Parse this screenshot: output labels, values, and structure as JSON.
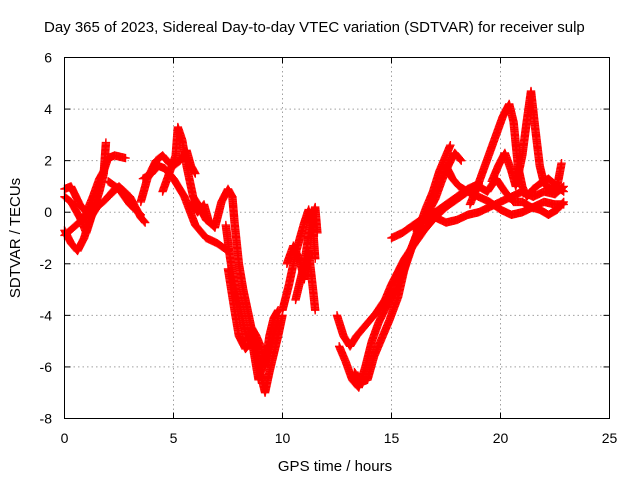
{
  "chart_data": {
    "type": "scatter",
    "title": "Day 365 of 2023, Sidereal Day-to-day VTEC variation (SDTVAR) for receiver sulp",
    "xlabel": "GPS time / hours",
    "ylabel": "SDTVAR / TECUs",
    "xlim": [
      0,
      25
    ],
    "ylim": [
      -8,
      6
    ],
    "xticks": [
      "0",
      "5",
      "10",
      "15",
      "20",
      "25"
    ],
    "yticks": [
      "-8",
      "-6",
      "-4",
      "-2",
      "0",
      "2",
      "4",
      "6"
    ],
    "grid": true,
    "marker": "plus",
    "color": "#ff0000",
    "series": [
      {
        "points": [
          [
            0,
            0.9
          ],
          [
            0.3,
            1.0
          ],
          [
            0.7,
            0.3
          ],
          [
            1.0,
            0.0
          ],
          [
            1.3,
            0.6
          ],
          [
            1.6,
            1.3
          ],
          [
            1.8,
            1.6
          ],
          [
            2.0,
            2.1
          ],
          [
            2.3,
            2.2
          ],
          [
            2.8,
            2.1
          ]
        ]
      },
      {
        "points": [
          [
            0,
            0.6
          ],
          [
            0.3,
            0.4
          ],
          [
            0.7,
            -0.2
          ],
          [
            1.0,
            -0.8
          ],
          [
            1.3,
            0.0
          ],
          [
            1.6,
            0.8
          ],
          [
            1.8,
            1.5
          ],
          [
            1.9,
            2.7
          ]
        ]
      },
      {
        "points": [
          [
            0,
            -0.7
          ],
          [
            0.3,
            -1.2
          ],
          [
            0.6,
            -1.5
          ],
          [
            0.9,
            -1.0
          ],
          [
            1.2,
            -0.2
          ],
          [
            1.5,
            0.2
          ],
          [
            1.9,
            0.5
          ],
          [
            2.3,
            0.9
          ]
        ]
      },
      {
        "points": [
          [
            0,
            -0.9
          ],
          [
            0.4,
            -0.6
          ],
          [
            0.8,
            -0.3
          ],
          [
            1.2,
            0.2
          ],
          [
            1.6,
            0.4
          ]
        ]
      },
      {
        "points": [
          [
            2.0,
            0.6
          ],
          [
            2.5,
            1.0
          ],
          [
            3.0,
            0.6
          ],
          [
            3.5,
            -0.2
          ],
          [
            3.7,
            -0.4
          ]
        ]
      },
      {
        "points": [
          [
            2.0,
            1.2
          ],
          [
            2.5,
            0.9
          ],
          [
            3.0,
            0.3
          ],
          [
            3.5,
            -0.1
          ]
        ]
      },
      {
        "points": [
          [
            3.5,
            0.4
          ],
          [
            3.8,
            1.3
          ],
          [
            4.2,
            2.0
          ],
          [
            4.5,
            2.2
          ],
          [
            4.8,
            1.9
          ],
          [
            5.0,
            1.8
          ],
          [
            5.3,
            2.0
          ],
          [
            5.6,
            2.4
          ],
          [
            5.8,
            1.8
          ],
          [
            6.0,
            1.5
          ]
        ]
      },
      {
        "points": [
          [
            3.6,
            1.3
          ],
          [
            4.0,
            1.5
          ],
          [
            4.3,
            1.8
          ],
          [
            4.6,
            1.7
          ],
          [
            5.0,
            1.3
          ],
          [
            5.5,
            0.6
          ],
          [
            6.0,
            -0.5
          ],
          [
            6.5,
            -1.0
          ],
          [
            7.0,
            -1.2
          ],
          [
            7.5,
            -1.5
          ]
        ]
      },
      {
        "points": [
          [
            4.5,
            0.8
          ],
          [
            4.8,
            1.5
          ],
          [
            5.1,
            2.2
          ],
          [
            5.2,
            3.3
          ],
          [
            5.4,
            2.8
          ],
          [
            5.6,
            1.8
          ],
          [
            5.9,
            0.6
          ],
          [
            6.2,
            0.2
          ],
          [
            6.5,
            -0.3
          ],
          [
            6.8,
            -0.5
          ]
        ]
      },
      {
        "points": [
          [
            5.8,
            0.4
          ],
          [
            6.1,
            0.0
          ],
          [
            6.4,
            0.3
          ],
          [
            6.6,
            -0.3
          ],
          [
            6.9,
            -0.6
          ],
          [
            7.2,
            0.4
          ],
          [
            7.5,
            0.9
          ],
          [
            7.7,
            0.6
          ],
          [
            7.8,
            -0.4
          ],
          [
            8.0,
            -2.0
          ],
          [
            8.2,
            -3.0
          ],
          [
            8.4,
            -3.8
          ],
          [
            8.6,
            -4.6
          ],
          [
            8.8,
            -5.5
          ],
          [
            9.0,
            -6.3
          ],
          [
            9.2,
            -7.0
          ],
          [
            9.4,
            -6.2
          ],
          [
            9.6,
            -5.5
          ],
          [
            9.8,
            -4.8
          ],
          [
            10.0,
            -4.0
          ]
        ]
      },
      {
        "points": [
          [
            7.4,
            -0.5
          ],
          [
            7.6,
            -1.8
          ],
          [
            7.8,
            -2.8
          ],
          [
            8.0,
            -3.5
          ],
          [
            8.2,
            -4.3
          ],
          [
            8.4,
            -5.0
          ],
          [
            8.6,
            -4.5
          ],
          [
            8.8,
            -4.8
          ],
          [
            9.0,
            -5.2
          ],
          [
            9.2,
            -6.0
          ],
          [
            9.4,
            -4.8
          ],
          [
            9.6,
            -4.1
          ],
          [
            9.8,
            -3.8
          ]
        ]
      },
      {
        "points": [
          [
            7.5,
            -2.2
          ],
          [
            7.8,
            -3.8
          ],
          [
            8.0,
            -4.8
          ],
          [
            8.3,
            -5.3
          ],
          [
            8.6,
            -5.0
          ],
          [
            8.9,
            -6.5
          ],
          [
            9.2,
            -5.6
          ],
          [
            9.5,
            -5.0
          ],
          [
            9.8,
            -4.2
          ]
        ]
      },
      {
        "points": [
          [
            10.0,
            -3.8
          ],
          [
            10.3,
            -2.8
          ],
          [
            10.6,
            -1.6
          ],
          [
            10.8,
            -1.0
          ],
          [
            11.0,
            -0.4
          ],
          [
            11.2,
            0.1
          ],
          [
            11.4,
            -0.6
          ],
          [
            11.5,
            -1.8
          ]
        ]
      },
      {
        "points": [
          [
            10.2,
            -2.0
          ],
          [
            10.5,
            -1.3
          ],
          [
            10.8,
            -1.9
          ],
          [
            11.0,
            -2.6
          ],
          [
            11.2,
            -1.5
          ],
          [
            11.4,
            -3.0
          ],
          [
            11.5,
            -3.8
          ]
        ]
      },
      {
        "points": [
          [
            10.6,
            -3.4
          ],
          [
            11.0,
            -2.0
          ],
          [
            11.3,
            -0.3
          ],
          [
            11.5,
            0.2
          ],
          [
            11.6,
            -0.8
          ]
        ]
      },
      {
        "points": [
          [
            12.5,
            -4.0
          ],
          [
            12.8,
            -4.8
          ],
          [
            13.1,
            -5.2
          ],
          [
            13.4,
            -4.8
          ],
          [
            13.7,
            -4.5
          ],
          [
            14.0,
            -4.2
          ],
          [
            14.3,
            -3.9
          ],
          [
            14.7,
            -3.4
          ],
          [
            15.0,
            -2.8
          ],
          [
            15.3,
            -2.3
          ],
          [
            15.6,
            -1.8
          ],
          [
            16.0,
            -1.3
          ],
          [
            16.5,
            -0.7
          ],
          [
            17.0,
            -0.2
          ],
          [
            17.5,
            0.2
          ],
          [
            18.0,
            0.5
          ],
          [
            18.5,
            0.8
          ],
          [
            19.0,
            1.1
          ]
        ]
      },
      {
        "points": [
          [
            12.6,
            -5.2
          ],
          [
            12.9,
            -5.8
          ],
          [
            13.2,
            -6.5
          ],
          [
            13.5,
            -6.8
          ],
          [
            13.8,
            -6.0
          ],
          [
            14.1,
            -5.0
          ],
          [
            14.4,
            -4.3
          ],
          [
            14.8,
            -3.6
          ],
          [
            15.2,
            -3.0
          ],
          [
            15.6,
            -2.2
          ],
          [
            16.0,
            -1.2
          ],
          [
            16.3,
            -0.5
          ],
          [
            16.6,
            0.2
          ],
          [
            16.9,
            0.8
          ],
          [
            17.2,
            1.6
          ],
          [
            17.5,
            2.2
          ],
          [
            17.7,
            2.6
          ]
        ]
      },
      {
        "points": [
          [
            13.3,
            -6.2
          ],
          [
            13.6,
            -6.6
          ],
          [
            13.9,
            -6.5
          ],
          [
            14.2,
            -5.6
          ],
          [
            14.5,
            -5.0
          ],
          [
            14.9,
            -4.2
          ],
          [
            15.3,
            -3.3
          ],
          [
            15.7,
            -1.8
          ],
          [
            16.1,
            -1.0
          ],
          [
            16.5,
            -0.3
          ],
          [
            17.0,
            0.5
          ],
          [
            17.3,
            1.2
          ],
          [
            17.6,
            1.8
          ],
          [
            17.9,
            2.3
          ],
          [
            18.2,
            2.0
          ]
        ]
      },
      {
        "points": [
          [
            15.0,
            -1.0
          ],
          [
            15.5,
            -0.8
          ],
          [
            16.0,
            -0.5
          ],
          [
            16.5,
            -0.2
          ],
          [
            17.0,
            0.0
          ],
          [
            17.5,
            0.3
          ],
          [
            18.0,
            0.6
          ],
          [
            18.5,
            0.9
          ],
          [
            19.0,
            1.1
          ]
        ]
      },
      {
        "points": [
          [
            16.0,
            -0.6
          ],
          [
            16.5,
            -0.3
          ],
          [
            17.0,
            -0.2
          ],
          [
            17.5,
            -0.4
          ],
          [
            18.0,
            -0.3
          ],
          [
            18.5,
            -0.1
          ],
          [
            19.0,
            0.0
          ],
          [
            19.5,
            0.2
          ],
          [
            20.0,
            0.4
          ],
          [
            20.5,
            0.6
          ],
          [
            21.0,
            0.8
          ],
          [
            21.5,
            0.6
          ],
          [
            22.0,
            0.8
          ],
          [
            22.5,
            0.7
          ],
          [
            22.9,
            1.0
          ]
        ]
      },
      {
        "points": [
          [
            17.5,
            1.8
          ],
          [
            17.8,
            1.3
          ],
          [
            18.1,
            1.0
          ],
          [
            18.5,
            0.8
          ],
          [
            19.0,
            0.6
          ],
          [
            19.5,
            0.4
          ],
          [
            20.0,
            0.1
          ],
          [
            20.5,
            -0.1
          ],
          [
            21.0,
            0.0
          ],
          [
            21.5,
            0.2
          ],
          [
            22.0,
            0.4
          ],
          [
            22.5,
            0.3
          ],
          [
            22.9,
            0.3
          ]
        ]
      },
      {
        "points": [
          [
            18.6,
            0.3
          ],
          [
            18.9,
            0.9
          ],
          [
            19.2,
            1.6
          ],
          [
            19.5,
            2.3
          ],
          [
            19.8,
            3.0
          ],
          [
            20.1,
            3.7
          ],
          [
            20.4,
            4.2
          ],
          [
            20.6,
            3.5
          ],
          [
            20.8,
            1.8
          ],
          [
            21.0,
            1.0
          ],
          [
            21.2,
            0.6
          ],
          [
            21.5,
            0.9
          ],
          [
            21.8,
            1.1
          ],
          [
            22.2,
            1.3
          ],
          [
            22.6,
            1.0
          ],
          [
            22.9,
            0.8
          ]
        ]
      },
      {
        "points": [
          [
            19.6,
            1.2
          ],
          [
            19.9,
            1.8
          ],
          [
            20.2,
            2.3
          ],
          [
            20.5,
            1.6
          ],
          [
            20.7,
            1.0
          ],
          [
            21.0,
            2.2
          ],
          [
            21.2,
            3.5
          ],
          [
            21.4,
            4.7
          ],
          [
            21.6,
            3.2
          ],
          [
            21.8,
            1.8
          ],
          [
            22.0,
            1.1
          ],
          [
            22.3,
            0.9
          ],
          [
            22.6,
            1.0
          ],
          [
            22.8,
            1.9
          ]
        ]
      },
      {
        "points": [
          [
            19.0,
            1.0
          ],
          [
            19.4,
            0.8
          ],
          [
            19.8,
            1.3
          ],
          [
            20.2,
            0.8
          ],
          [
            20.6,
            0.4
          ],
          [
            21.0,
            0.4
          ],
          [
            21.4,
            0.2
          ],
          [
            21.8,
            0.1
          ],
          [
            22.2,
            -0.1
          ],
          [
            22.6,
            0.1
          ],
          [
            22.9,
            0.4
          ]
        ]
      }
    ]
  }
}
